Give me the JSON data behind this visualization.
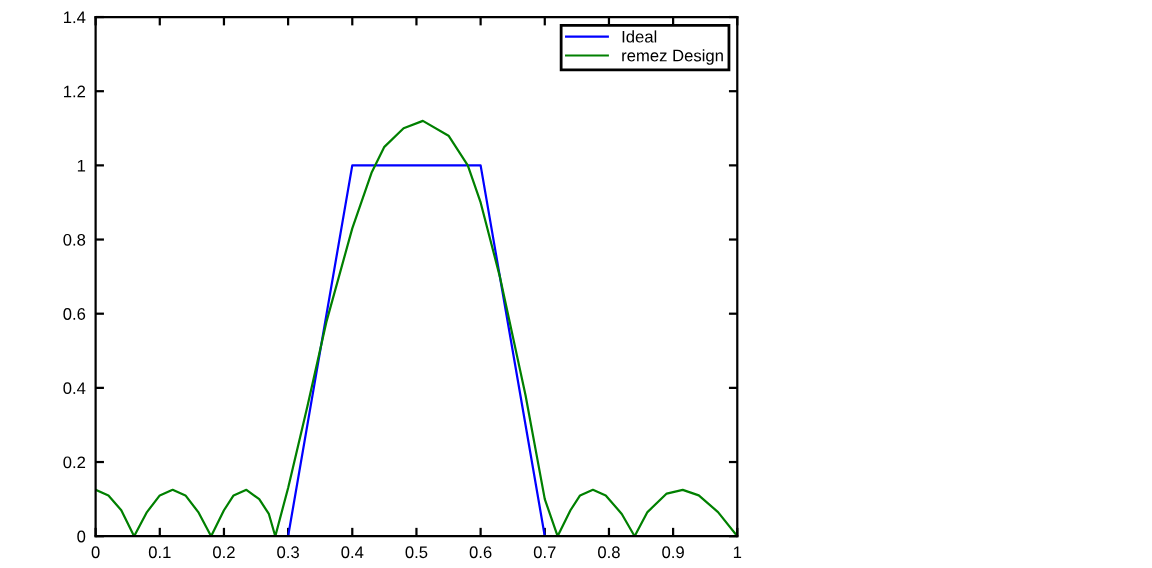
{
  "chart_data": {
    "type": "line",
    "xlim": [
      0,
      1
    ],
    "ylim": [
      0,
      1.4
    ],
    "xticks": [
      0,
      0.1,
      0.2,
      0.3,
      0.4,
      0.5,
      0.6,
      0.7,
      0.8,
      0.9,
      1
    ],
    "yticks": [
      0,
      0.2,
      0.4,
      0.6,
      0.8,
      1,
      1.2,
      1.4
    ],
    "legend": "top right",
    "grid": false,
    "series": [
      {
        "name": "Ideal",
        "color": "#0000ff",
        "x": [
          0,
          0.3,
          0.4,
          0.6,
          0.7,
          1
        ],
        "values": [
          0,
          0,
          1,
          1,
          0,
          0
        ]
      },
      {
        "name": "remez Design",
        "color": "#008000",
        "x": [
          0,
          0.02,
          0.04,
          0.06,
          0.08,
          0.1,
          0.12,
          0.14,
          0.16,
          0.18,
          0.2,
          0.215,
          0.235,
          0.255,
          0.27,
          0.28,
          0.3,
          0.33,
          0.36,
          0.4,
          0.43,
          0.45,
          0.48,
          0.51,
          0.55,
          0.58,
          0.6,
          0.63,
          0.67,
          0.7,
          0.72,
          0.74,
          0.755,
          0.775,
          0.795,
          0.82,
          0.84,
          0.86,
          0.89,
          0.915,
          0.94,
          0.97,
          1
        ],
        "values": [
          0.125,
          0.11,
          0.07,
          0,
          0.065,
          0.11,
          0.125,
          0.11,
          0.065,
          0,
          0.07,
          0.11,
          0.125,
          0.1,
          0.06,
          0,
          0.13,
          0.35,
          0.58,
          0.83,
          0.98,
          1.05,
          1.1,
          1.12,
          1.08,
          1.0,
          0.9,
          0.7,
          0.38,
          0.1,
          0,
          0.07,
          0.11,
          0.125,
          0.11,
          0.06,
          0,
          0.065,
          0.115,
          0.125,
          0.11,
          0.065,
          0
        ]
      }
    ]
  }
}
